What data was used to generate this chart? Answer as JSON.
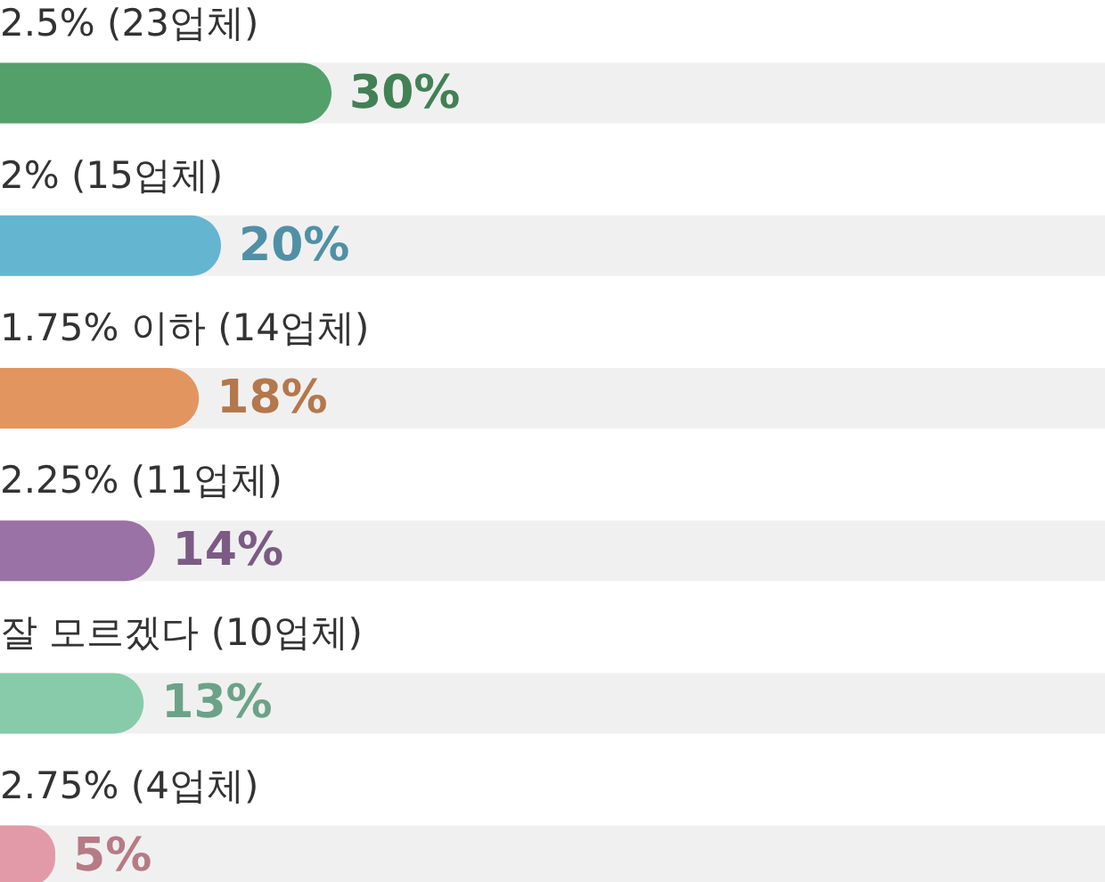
{
  "chart_data": {
    "type": "bar",
    "orientation": "horizontal",
    "categories": [
      "2.5% (23업체)",
      "2% (15업체)",
      "1.75% 이하 (14업체)",
      "2.25% (11업체)",
      "잘 모르겠다 (10업체)",
      "2.75% (4업체)"
    ],
    "values": [
      30,
      20,
      18,
      14,
      13,
      5
    ],
    "colors": [
      "#53a06b",
      "#64b5d0",
      "#e3955f",
      "#9a72a5",
      "#87cbaa",
      "#e39aa8"
    ],
    "value_labels": [
      "30%",
      "20%",
      "18%",
      "14%",
      "13%",
      "5%"
    ],
    "xlim": [
      0,
      100
    ],
    "tick_labels": "y"
  }
}
